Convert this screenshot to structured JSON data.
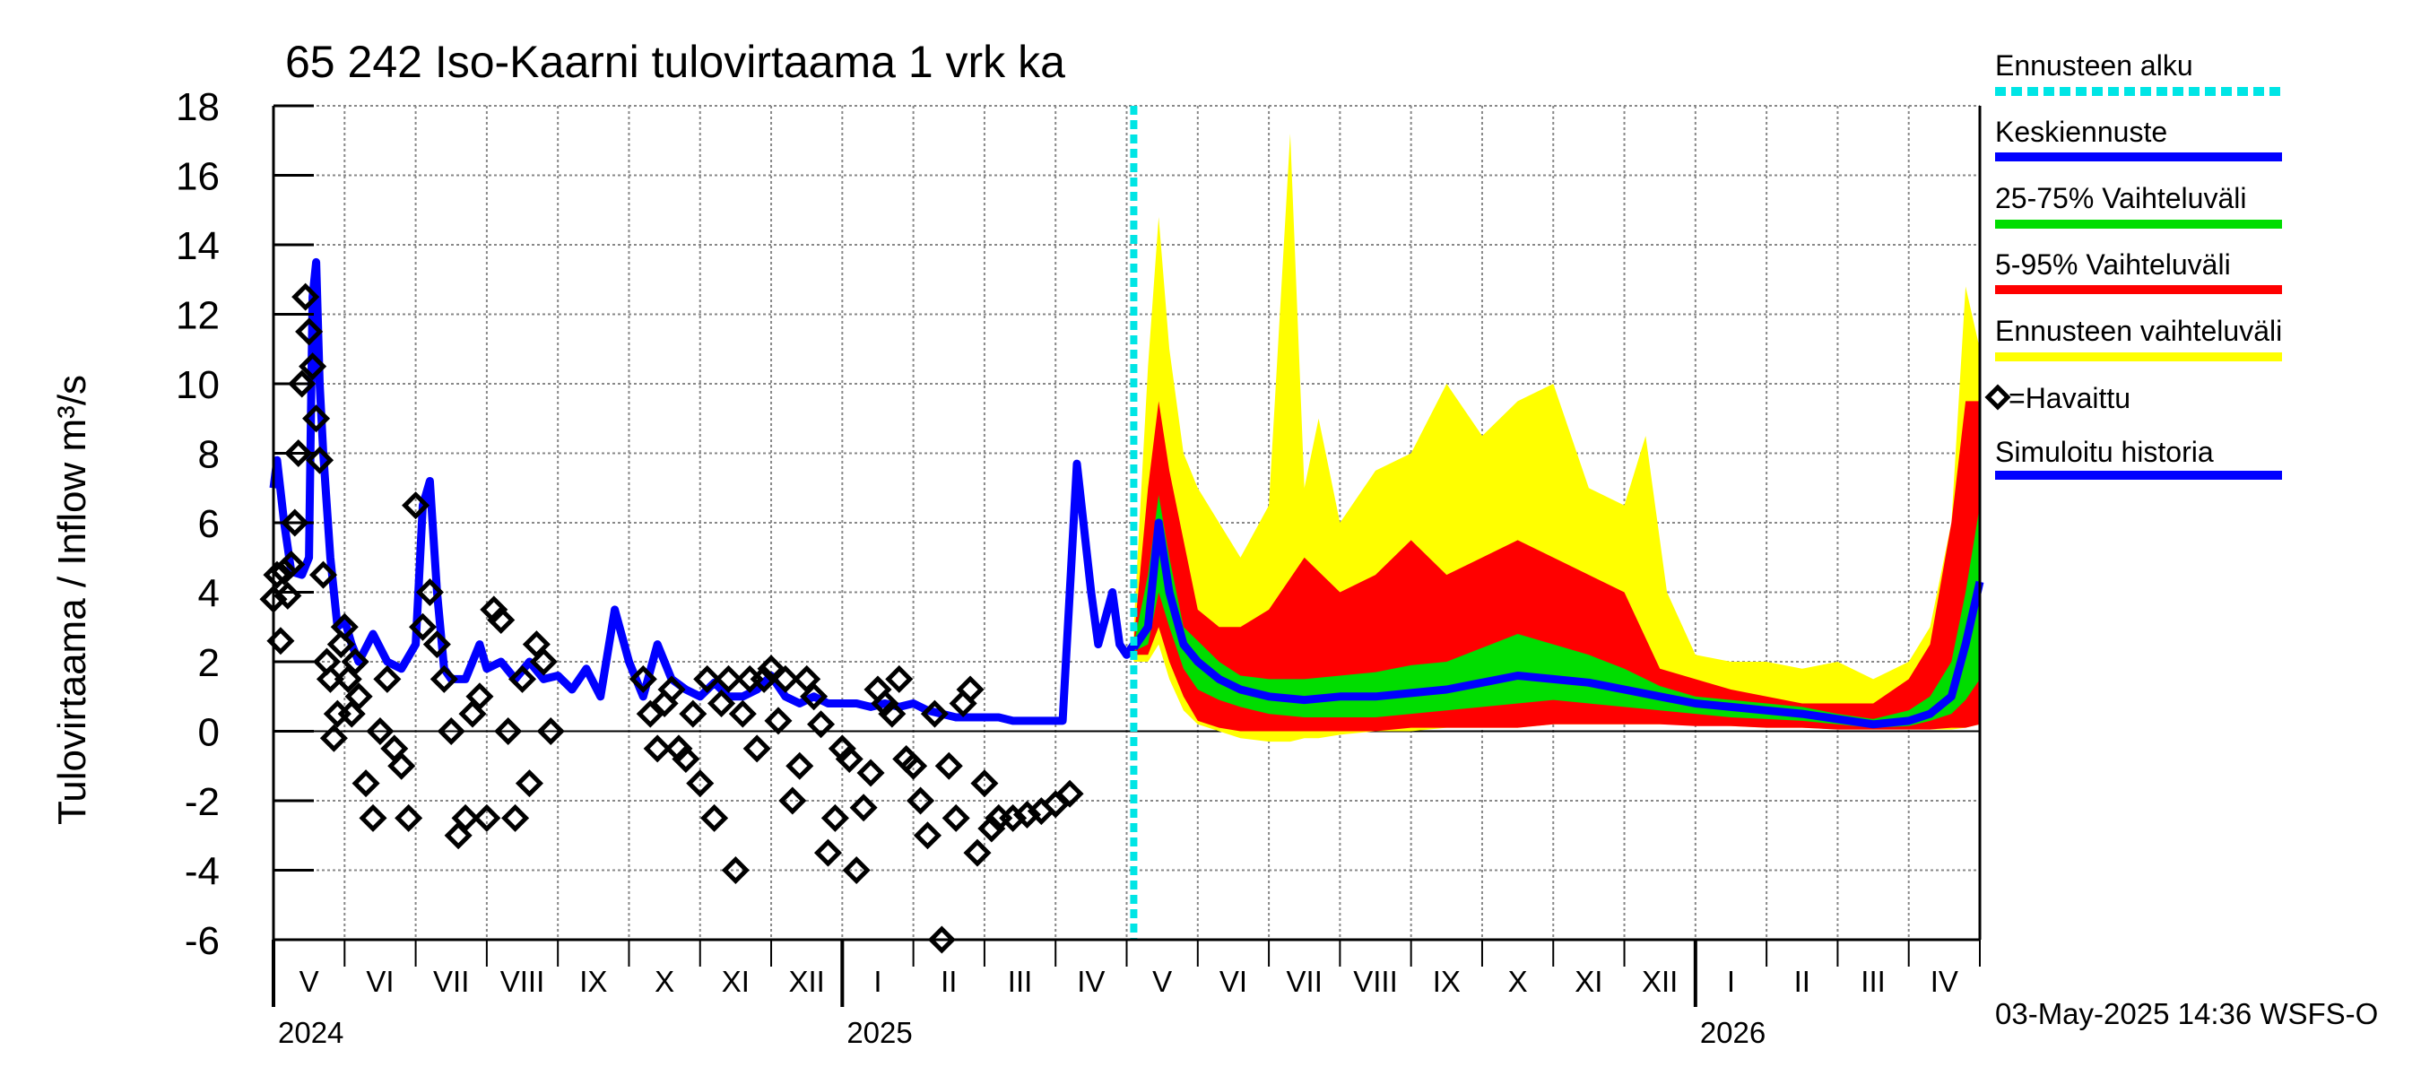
{
  "chart_data": {
    "type": "line",
    "title": "65 242 Iso-Kaarni tulovirtaama 1 vrk ka",
    "ylabel": "Tulovirtaama / Inflow    m³/s",
    "ylim": [
      -6,
      18
    ],
    "yticks": [
      -6,
      -4,
      -2,
      0,
      2,
      4,
      6,
      8,
      10,
      12,
      14,
      16,
      18
    ],
    "x_range_months": [
      0,
      24
    ],
    "month_labels": [
      "V",
      "VI",
      "VII",
      "VIII",
      "IX",
      "X",
      "XI",
      "XII",
      "I",
      "II",
      "III",
      "IV",
      "V",
      "VI",
      "VII",
      "VIII",
      "IX",
      "X",
      "XI",
      "XII",
      "I",
      "II",
      "III",
      "IV"
    ],
    "year_labels": [
      {
        "text": "2024",
        "month_index": 0
      },
      {
        "text": "2025",
        "month_index": 8
      },
      {
        "text": "2026",
        "month_index": 20
      }
    ],
    "forecast_start_month": 12.1,
    "legend": [
      {
        "label": "Ennusteen alku",
        "color": "#00e5e5",
        "style": "dashed"
      },
      {
        "label": "Keskiennuste",
        "color": "#0000ff",
        "style": "line"
      },
      {
        "label": "25-75% Vaihteluväli",
        "color": "#00dd00",
        "style": "line"
      },
      {
        "label": "5-95% Vaihteluväli",
        "color": "#ff0000",
        "style": "line"
      },
      {
        "label": "Ennusteen vaihteluväli",
        "color": "#ffff00",
        "style": "line"
      },
      {
        "label": "=Havaittu",
        "color": "#000000",
        "style": "marker"
      },
      {
        "label": "Simuloitu historia",
        "color": "#0000ff",
        "style": "line"
      }
    ],
    "series": [
      {
        "name": "Simuloitu historia",
        "color": "#0000ff",
        "x": [
          0,
          0.05,
          0.15,
          0.25,
          0.4,
          0.5,
          0.55,
          0.6,
          0.65,
          0.7,
          0.8,
          0.9,
          1.0,
          1.1,
          1.2,
          1.4,
          1.6,
          1.8,
          2.0,
          2.1,
          2.2,
          2.3,
          2.4,
          2.5,
          2.7,
          2.9,
          3.0,
          3.2,
          3.4,
          3.6,
          3.8,
          4.0,
          4.2,
          4.4,
          4.6,
          4.8,
          5.0,
          5.2,
          5.4,
          5.6,
          5.8,
          6.0,
          6.2,
          6.4,
          6.6,
          6.8,
          7.0,
          7.2,
          7.4,
          7.6,
          7.8,
          8.0,
          8.2,
          8.4,
          8.6,
          8.8,
          9.0,
          9.2,
          9.4,
          9.6,
          9.8,
          10.0,
          10.2,
          10.4,
          10.6,
          10.8,
          11.0,
          11.1,
          11.3,
          11.5,
          11.6,
          11.8,
          11.9,
          12.0,
          12.1
        ],
        "values": [
          7.0,
          7.8,
          6.0,
          4.6,
          4.5,
          5.0,
          12.5,
          13.5,
          10.0,
          8.0,
          5.0,
          3.0,
          3.2,
          2.5,
          2.0,
          2.8,
          2.0,
          1.8,
          2.5,
          6.5,
          7.2,
          4.0,
          1.8,
          1.5,
          1.5,
          2.5,
          1.8,
          2.0,
          1.5,
          2.0,
          1.5,
          1.6,
          1.2,
          1.8,
          1.0,
          3.5,
          2.0,
          1.0,
          2.5,
          1.5,
          1.2,
          1.0,
          1.4,
          1.0,
          1.0,
          1.2,
          1.6,
          1.0,
          0.8,
          1.0,
          0.8,
          0.8,
          0.8,
          0.7,
          0.8,
          0.7,
          0.8,
          0.6,
          0.5,
          0.4,
          0.4,
          0.4,
          0.4,
          0.3,
          0.3,
          0.3,
          0.3,
          0.3,
          7.7,
          4.0,
          2.5,
          4.0,
          2.5,
          2.2,
          2.5
        ]
      },
      {
        "name": "Keskiennuste",
        "color": "#0000ff",
        "x": [
          12.1,
          12.3,
          12.45,
          12.6,
          12.8,
          13.0,
          13.3,
          13.6,
          14.0,
          14.5,
          15.0,
          15.5,
          16.0,
          16.5,
          17.0,
          17.5,
          18.0,
          18.5,
          19.0,
          19.5,
          20.0,
          20.5,
          21.0,
          21.5,
          22.0,
          22.5,
          23.0,
          23.3,
          23.6,
          23.8,
          24.0
        ],
        "values": [
          2.4,
          3.0,
          6.0,
          4.0,
          2.5,
          2.0,
          1.5,
          1.2,
          1.0,
          0.9,
          1.0,
          1.0,
          1.1,
          1.2,
          1.4,
          1.6,
          1.5,
          1.4,
          1.2,
          1.0,
          0.8,
          0.7,
          0.6,
          0.5,
          0.35,
          0.2,
          0.3,
          0.5,
          1.0,
          2.5,
          4.3
        ]
      }
    ],
    "bands": [
      {
        "name": "Ennusteen vaihteluväli",
        "color": "#ffff00",
        "x": [
          12.1,
          12.3,
          12.45,
          12.6,
          12.8,
          13.0,
          13.3,
          13.6,
          14.0,
          14.3,
          14.5,
          14.7,
          15.0,
          15.5,
          16.0,
          16.5,
          17.0,
          17.5,
          18.0,
          18.5,
          19.0,
          19.3,
          19.6,
          20.0,
          20.5,
          21.0,
          21.5,
          22.0,
          22.5,
          23.0,
          23.3,
          23.6,
          23.8,
          24.0
        ],
        "upper": [
          3.0,
          10.5,
          14.8,
          11.0,
          8.0,
          7.0,
          6.0,
          5.0,
          6.5,
          17.2,
          7.0,
          9.0,
          6.0,
          7.5,
          8.0,
          10.0,
          8.5,
          9.5,
          10.0,
          7.0,
          6.5,
          8.5,
          4.0,
          2.2,
          2.0,
          2.0,
          1.8,
          2.0,
          1.5,
          2.0,
          3.0,
          6.0,
          12.8,
          11.0
        ],
        "lower": [
          2.0,
          2.0,
          2.5,
          1.5,
          0.6,
          0.2,
          0.0,
          -0.2,
          -0.3,
          -0.3,
          -0.2,
          -0.2,
          -0.1,
          0.0,
          0.0,
          0.1,
          0.1,
          0.1,
          0.2,
          0.2,
          0.2,
          0.2,
          0.2,
          0.2,
          0.15,
          0.1,
          0.1,
          0.05,
          0.05,
          0.05,
          0.05,
          0.05,
          0.1,
          0.2
        ]
      },
      {
        "name": "5-95% Vaihteluväli",
        "color": "#ff0000",
        "x": [
          12.1,
          12.3,
          12.45,
          12.6,
          12.8,
          13.0,
          13.3,
          13.6,
          14.0,
          14.5,
          15.0,
          15.5,
          16.0,
          16.5,
          17.0,
          17.5,
          18.0,
          18.5,
          19.0,
          19.5,
          20.0,
          20.5,
          21.0,
          21.5,
          22.0,
          22.5,
          23.0,
          23.3,
          23.6,
          23.8,
          24.0
        ],
        "upper": [
          2.6,
          7.0,
          9.5,
          7.5,
          5.5,
          3.5,
          3.0,
          3.0,
          3.5,
          5.0,
          4.0,
          4.5,
          5.5,
          4.5,
          5.0,
          5.5,
          5.0,
          4.5,
          4.0,
          1.8,
          1.5,
          1.2,
          1.0,
          0.8,
          0.8,
          0.8,
          1.5,
          2.5,
          6.0,
          9.5,
          9.5
        ],
        "lower": [
          2.2,
          2.2,
          3.0,
          2.0,
          1.0,
          0.3,
          0.1,
          0.0,
          0.0,
          0.0,
          0.0,
          0.0,
          0.1,
          0.1,
          0.1,
          0.1,
          0.2,
          0.2,
          0.2,
          0.2,
          0.15,
          0.15,
          0.1,
          0.1,
          0.05,
          0.05,
          0.05,
          0.05,
          0.1,
          0.1,
          0.2
        ]
      },
      {
        "name": "25-75% Vaihteluväli",
        "color": "#00dd00",
        "x": [
          12.1,
          12.3,
          12.45,
          12.6,
          12.8,
          13.0,
          13.3,
          13.6,
          14.0,
          14.5,
          15.0,
          15.5,
          16.0,
          16.5,
          17.0,
          17.5,
          18.0,
          18.5,
          19.0,
          19.5,
          20.0,
          20.5,
          21.0,
          21.5,
          22.0,
          22.5,
          23.0,
          23.3,
          23.6,
          23.8,
          24.0
        ],
        "upper": [
          2.5,
          4.5,
          6.8,
          5.0,
          3.0,
          2.6,
          2.0,
          1.6,
          1.5,
          1.5,
          1.6,
          1.7,
          1.9,
          2.0,
          2.4,
          2.8,
          2.5,
          2.2,
          1.8,
          1.3,
          1.0,
          0.9,
          0.8,
          0.7,
          0.5,
          0.35,
          0.6,
          1.0,
          2.0,
          4.0,
          6.5
        ],
        "lower": [
          2.3,
          2.5,
          4.0,
          3.0,
          1.8,
          1.2,
          0.9,
          0.7,
          0.5,
          0.4,
          0.4,
          0.4,
          0.5,
          0.6,
          0.7,
          0.8,
          0.9,
          0.8,
          0.7,
          0.6,
          0.5,
          0.4,
          0.35,
          0.3,
          0.2,
          0.1,
          0.15,
          0.3,
          0.5,
          0.9,
          1.5
        ]
      }
    ],
    "observed": {
      "name": "=Havaittu",
      "x": [
        0,
        0.05,
        0.1,
        0.15,
        0.2,
        0.25,
        0.3,
        0.35,
        0.4,
        0.45,
        0.5,
        0.55,
        0.6,
        0.65,
        0.7,
        0.75,
        0.8,
        0.85,
        0.9,
        0.95,
        1.0,
        1.05,
        1.1,
        1.15,
        1.2,
        1.3,
        1.4,
        1.5,
        1.6,
        1.7,
        1.8,
        1.9,
        2.0,
        2.1,
        2.2,
        2.3,
        2.4,
        2.5,
        2.6,
        2.7,
        2.8,
        2.9,
        3.0,
        3.1,
        3.2,
        3.3,
        3.4,
        3.5,
        3.6,
        3.7,
        3.8,
        3.9,
        5.2,
        5.3,
        5.4,
        5.5,
        5.6,
        5.7,
        5.8,
        5.9,
        6.0,
        6.1,
        6.2,
        6.3,
        6.4,
        6.5,
        6.6,
        6.7,
        6.8,
        6.9,
        7.0,
        7.1,
        7.2,
        7.3,
        7.4,
        7.5,
        7.6,
        7.7,
        7.8,
        7.9,
        8.0,
        8.1,
        8.2,
        8.3,
        8.4,
        8.5,
        8.6,
        8.7,
        8.8,
        8.9,
        9.0,
        9.1,
        9.2,
        9.3,
        9.4,
        9.5,
        9.6,
        9.7,
        9.8,
        9.9,
        10.0,
        10.1,
        10.2,
        10.4,
        10.6,
        10.8,
        11.0,
        11.2
      ],
      "values": [
        3.8,
        4.5,
        2.6,
        4.6,
        3.9,
        4.8,
        6.0,
        8.0,
        10.0,
        12.5,
        11.5,
        10.5,
        9.0,
        7.8,
        4.5,
        2.0,
        1.5,
        -0.2,
        0.5,
        2.5,
        3.0,
        1.5,
        0.5,
        2.0,
        1.0,
        -1.5,
        -2.5,
        0.0,
        1.5,
        -0.5,
        -1.0,
        -2.5,
        6.5,
        3.0,
        4.0,
        2.5,
        1.5,
        0.0,
        -3.0,
        -2.5,
        0.5,
        1.0,
        -2.5,
        3.5,
        3.2,
        0.0,
        -2.5,
        1.5,
        -1.5,
        2.5,
        2.0,
        0.0,
        1.5,
        0.5,
        -0.5,
        0.8,
        1.2,
        -0.5,
        -0.8,
        0.5,
        -1.5,
        1.5,
        -2.5,
        0.8,
        1.5,
        -4.0,
        0.5,
        1.5,
        -0.5,
        1.5,
        1.8,
        0.3,
        1.5,
        -2.0,
        -1.0,
        1.5,
        1.0,
        0.2,
        -3.5,
        -2.5,
        -0.5,
        -0.8,
        -4.0,
        -2.2,
        -1.2,
        1.2,
        0.8,
        0.5,
        1.5,
        -0.8,
        -1.0,
        -2.0,
        -3.0,
        0.5,
        -6.0,
        -1.0,
        -2.5,
        0.8,
        1.2,
        -3.5,
        -1.5,
        -2.8,
        -2.5,
        -2.5,
        -2.4,
        -2.3,
        -2.1,
        -1.8
      ]
    }
  },
  "footer": {
    "timestamp": "03-May-2025 14:36 WSFS-O"
  }
}
